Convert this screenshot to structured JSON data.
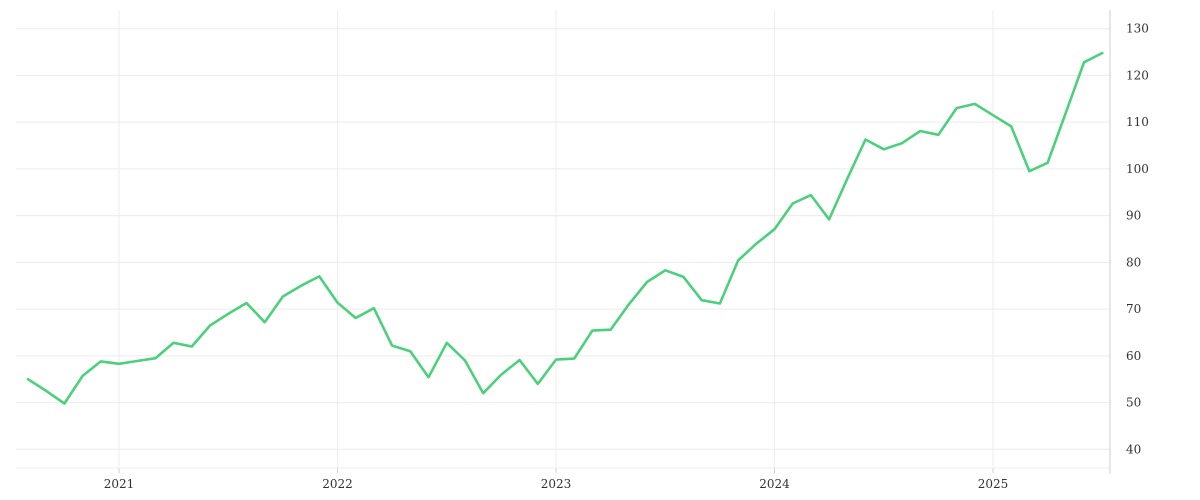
{
  "chart_data": {
    "type": "line",
    "title": "",
    "xlabel": "",
    "ylabel": "",
    "x_tick_labels": [
      "2021",
      "2022",
      "2023",
      "2024",
      "2025"
    ],
    "y_tick_labels": [
      "40",
      "50",
      "60",
      "70",
      "80",
      "90",
      "100",
      "110",
      "120",
      "130"
    ],
    "ylim": [
      36,
      134
    ],
    "grid": true,
    "y_axis_position": "right",
    "series_color": "#4cd07d",
    "series": [
      {
        "x": [
          "2020-08",
          "2020-09",
          "2020-10",
          "2020-11",
          "2020-12",
          "2021-01",
          "2021-02",
          "2021-03",
          "2021-04",
          "2021-05",
          "2021-06",
          "2021-07",
          "2021-08",
          "2021-09",
          "2021-10",
          "2021-11",
          "2021-12",
          "2022-01",
          "2022-02",
          "2022-03",
          "2022-04",
          "2022-05",
          "2022-06",
          "2022-07",
          "2022-08",
          "2022-09",
          "2022-10",
          "2022-11",
          "2022-12",
          "2023-01",
          "2023-02",
          "2023-03",
          "2023-04",
          "2023-05",
          "2023-06",
          "2023-07",
          "2023-08",
          "2023-09",
          "2023-10",
          "2023-11",
          "2023-12",
          "2024-01",
          "2024-02",
          "2024-03",
          "2024-04",
          "2024-05",
          "2024-06",
          "2024-07",
          "2024-08",
          "2024-09",
          "2024-10",
          "2024-11",
          "2024-12",
          "2025-01",
          "2025-02",
          "2025-03",
          "2025-04",
          "2025-05",
          "2025-06",
          "2025-07"
        ],
        "values": [
          55.0,
          52.5,
          49.8,
          55.7,
          58.8,
          58.3,
          58.9,
          59.5,
          62.8,
          62.0,
          66.5,
          69.0,
          71.3,
          67.2,
          72.7,
          75.0,
          77.0,
          71.4,
          68.1,
          70.2,
          62.2,
          61.0,
          55.4,
          62.8,
          59.0,
          52.0,
          56.0,
          59.1,
          54.0,
          59.2,
          59.4,
          65.4,
          65.6,
          71.0,
          75.8,
          78.3,
          76.9,
          71.9,
          71.2,
          80.4,
          84.0,
          87.1,
          92.6,
          94.4,
          89.2,
          97.9,
          106.3,
          104.2,
          105.5,
          108.1,
          107.3,
          113.0,
          113.9,
          111.5,
          109.1,
          99.5,
          101.3,
          112.0,
          122.8,
          124.8
        ]
      }
    ]
  }
}
